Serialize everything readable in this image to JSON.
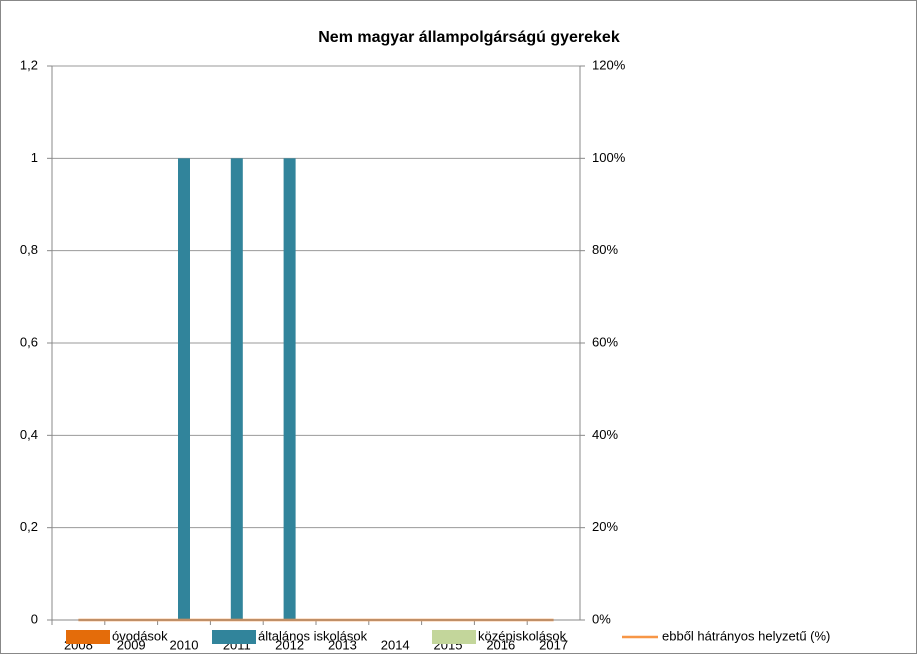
{
  "chart_data": {
    "type": "bar",
    "title": "Nem magyar állampolgárságú gyerekek",
    "categories": [
      "2008",
      "2009",
      "2010",
      "2011",
      "2012",
      "2013",
      "2014",
      "2015",
      "2016",
      "2017"
    ],
    "series": [
      {
        "name": "óvodások",
        "color": "#e46c0a",
        "values": [
          0,
          0,
          0,
          0,
          0,
          0,
          0,
          0,
          0,
          0
        ]
      },
      {
        "name": "általános iskolások",
        "color": "#31849b",
        "values": [
          0,
          0,
          1,
          1,
          1,
          0,
          0,
          0,
          0,
          0
        ]
      },
      {
        "name": "középiskolások",
        "color": "#c3d69b",
        "values": [
          0,
          0,
          0,
          0,
          0,
          0,
          0,
          0,
          0,
          0
        ]
      },
      {
        "name": "ebből hátrányos helyzetű (%)",
        "color": "#f79646",
        "type": "line",
        "axis": "y2",
        "values": [
          0,
          0,
          0,
          0,
          0,
          0,
          0,
          0,
          0,
          0
        ]
      }
    ],
    "ylim": [
      0,
      1.2
    ],
    "yticks": [
      0,
      {
        "value": 0.2,
        "label": "0,2"
      },
      {
        "value": 0.4,
        "label": "0,4"
      },
      {
        "value": 0.6,
        "label": "0,6"
      },
      {
        "value": 0.8,
        "label": "0,8"
      },
      1,
      {
        "value": 1.2,
        "label": "1,2"
      }
    ],
    "y2lim": [
      0,
      120
    ],
    "y2ticks": [
      {
        "value": 0,
        "label": "0%"
      },
      {
        "value": 20,
        "label": "20%"
      },
      {
        "value": 40,
        "label": "40%"
      },
      {
        "value": 60,
        "label": "60%"
      },
      {
        "value": 80,
        "label": "80%"
      },
      {
        "value": 100,
        "label": "100%"
      },
      {
        "value": 120,
        "label": "120%"
      }
    ],
    "grid": true,
    "legend": "bottom"
  }
}
